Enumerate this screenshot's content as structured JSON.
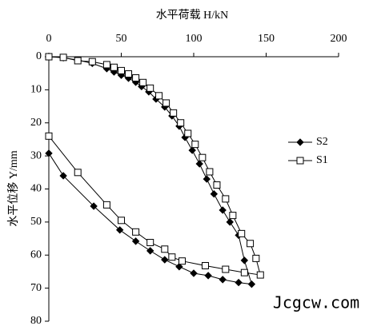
{
  "chart_data": {
    "type": "line",
    "x_axis_label": "水平荷载 H/kN",
    "y_axis_label": "水平位移 Y/mm",
    "x_axis_position": "top",
    "y_inverted": true,
    "xlim": [
      0,
      200
    ],
    "xticks": [
      0,
      50,
      100,
      150,
      200
    ],
    "ylim": [
      0,
      80
    ],
    "yticks": [
      0,
      10,
      20,
      30,
      40,
      50,
      60,
      70,
      80
    ],
    "legend": "right",
    "watermark": "Jcgcw.com",
    "series": [
      {
        "name": "S2",
        "color": "#000000",
        "marker": "diamond",
        "x": [
          0,
          10,
          20,
          30,
          40,
          45,
          50,
          55,
          60,
          64,
          69,
          74,
          80,
          85,
          90,
          94,
          99,
          104,
          109,
          114,
          120,
          125,
          131,
          135,
          140,
          131,
          120,
          110,
          100,
          90,
          80,
          70,
          60,
          49,
          31,
          10,
          0
        ],
        "values": [
          0,
          0.3,
          1.0,
          2.0,
          3.6,
          4.6,
          5.6,
          6.5,
          7.7,
          9.0,
          10.6,
          12.8,
          15.2,
          17.9,
          21.0,
          24.4,
          28.3,
          32.4,
          37.0,
          41.5,
          46.4,
          50.0,
          54.0,
          61.6,
          68.8,
          68.3,
          67.4,
          66.2,
          65.5,
          63.5,
          61.4,
          58.7,
          55.8,
          52.4,
          45.2,
          36.0,
          29.2
        ]
      },
      {
        "name": "S1",
        "color": "#000000",
        "marker": "square",
        "x": [
          0,
          10,
          20,
          30,
          40,
          45,
          50,
          55,
          60,
          65,
          70,
          76,
          81,
          86,
          91,
          96,
          101,
          106,
          111,
          116,
          122,
          127,
          133,
          139,
          143,
          146,
          135,
          122,
          108,
          92,
          85,
          80,
          70,
          60,
          50,
          40,
          20,
          0
        ],
        "values": [
          0,
          0.2,
          1.2,
          1.5,
          2.4,
          3.2,
          4.2,
          5.2,
          6.4,
          7.8,
          9.5,
          11.8,
          14.0,
          17.0,
          20.0,
          23.2,
          26.5,
          30.5,
          34.8,
          38.8,
          43.0,
          48.0,
          53.5,
          56.5,
          61.0,
          66.0,
          65.3,
          64.3,
          63.2,
          61.8,
          60.6,
          58.2,
          56.2,
          53.0,
          49.5,
          44.8,
          35.0,
          24.0
        ]
      }
    ]
  }
}
